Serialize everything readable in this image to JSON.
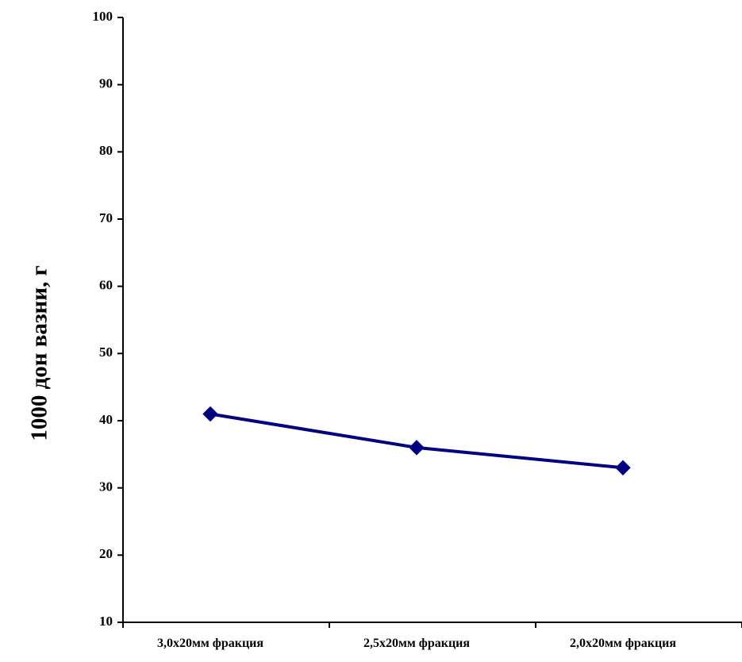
{
  "chart_data": {
    "type": "line",
    "title": "",
    "xlabel": "",
    "ylabel": "1000 дон вазни, г",
    "ylim": [
      10,
      100
    ],
    "yticks": [
      10,
      20,
      30,
      40,
      50,
      60,
      70,
      80,
      90,
      100
    ],
    "categories": [
      "3,0х20мм фракция",
      "2,5х20мм фракция",
      "2,0х20мм фракция"
    ],
    "series": [
      {
        "values": [
          41,
          36,
          33
        ]
      }
    ],
    "grid": false,
    "legend": "none",
    "line_color": "#000080",
    "marker": "diamond"
  }
}
